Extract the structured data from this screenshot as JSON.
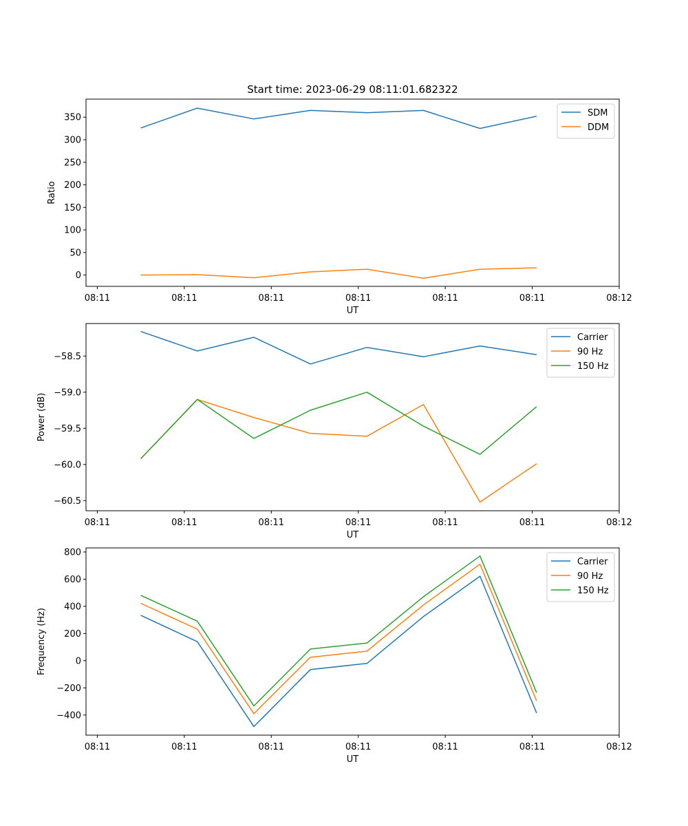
{
  "figure": {
    "title": "Start time: 2023-06-29 08:11:01.682322"
  },
  "chart_data": [
    {
      "type": "line",
      "x_tick_labels": [
        "08:11",
        "08:11",
        "08:11",
        "08:11",
        "08:11",
        "08:11",
        "08:12"
      ],
      "xlabel": "UT",
      "ylabel": "Ratio",
      "ylim": [
        -25,
        390
      ],
      "y_ticks": [
        0,
        50,
        100,
        150,
        200,
        250,
        300,
        350
      ],
      "x_tick_values": [
        0,
        1,
        2,
        3,
        4,
        5,
        6
      ],
      "xlim": [
        -0.13,
        6.0
      ],
      "x": [
        0.5,
        1.15,
        1.8,
        2.45,
        3.1,
        3.75,
        4.4,
        5.05
      ],
      "legend_position": "upper-right",
      "series": [
        {
          "name": "SDM",
          "color": "#1f77b4",
          "values": [
            326,
            370,
            346,
            365,
            360,
            365,
            325,
            352
          ]
        },
        {
          "name": "DDM",
          "color": "#ff7f0e",
          "values": [
            0,
            1,
            -6,
            7,
            13,
            -7,
            13,
            16
          ]
        }
      ]
    },
    {
      "type": "line",
      "x_tick_labels": [
        "08:11",
        "08:11",
        "08:11",
        "08:11",
        "08:11",
        "08:11",
        "08:12"
      ],
      "xlabel": "UT",
      "ylabel": "Power (dB)",
      "ylim": [
        -60.64,
        -58.05
      ],
      "y_ticks": [
        -60.5,
        -60.0,
        -59.5,
        -59.0,
        -58.5
      ],
      "y_tick_labels": [
        "−60.5",
        "−60.0",
        "−59.5",
        "−59.0",
        "−58.5"
      ],
      "x_tick_values": [
        0,
        1,
        2,
        3,
        4,
        5,
        6
      ],
      "xlim": [
        -0.13,
        6.0
      ],
      "x": [
        0.5,
        1.15,
        1.8,
        2.45,
        3.1,
        3.75,
        4.4,
        5.05
      ],
      "legend_position": "upper-right",
      "series": [
        {
          "name": "Carrier",
          "color": "#1f77b4",
          "values": [
            -58.16,
            -58.43,
            -58.24,
            -58.61,
            -58.38,
            -58.51,
            -58.36,
            -58.48
          ]
        },
        {
          "name": "90 Hz",
          "color": "#ff7f0e",
          "values": [
            -59.92,
            -59.1,
            -59.35,
            -59.57,
            -59.61,
            -59.17,
            -60.52,
            -59.99
          ]
        },
        {
          "name": "150 Hz",
          "color": "#2ca02c",
          "values": [
            -59.92,
            -59.1,
            -59.64,
            -59.25,
            -59.0,
            -59.47,
            -59.86,
            -59.2
          ]
        }
      ]
    },
    {
      "type": "line",
      "x_tick_labels": [
        "08:11",
        "08:11",
        "08:11",
        "08:11",
        "08:11",
        "08:11",
        "08:12"
      ],
      "xlabel": "UT",
      "ylabel": "Frequency (Hz)",
      "ylim": [
        -548,
        830
      ],
      "y_ticks": [
        -400,
        -200,
        0,
        200,
        400,
        600,
        800
      ],
      "y_tick_labels": [
        "−400",
        "−200",
        "0",
        "200",
        "400",
        "600",
        "800"
      ],
      "x_tick_values": [
        0,
        1,
        2,
        3,
        4,
        5,
        6
      ],
      "xlim": [
        -0.13,
        6.0
      ],
      "x": [
        0.5,
        1.15,
        1.8,
        2.45,
        3.1,
        3.75,
        4.4,
        5.05
      ],
      "legend_position": "upper-right",
      "series": [
        {
          "name": "Carrier",
          "color": "#1f77b4",
          "values": [
            334,
            140,
            -485,
            -65,
            -20,
            325,
            622,
            -385
          ]
        },
        {
          "name": "90 Hz",
          "color": "#ff7f0e",
          "values": [
            422,
            232,
            -390,
            25,
            70,
            410,
            710,
            -295
          ]
        },
        {
          "name": "150 Hz",
          "color": "#2ca02c",
          "values": [
            481,
            291,
            -333,
            86,
            130,
            471,
            770,
            -235
          ]
        }
      ]
    }
  ]
}
